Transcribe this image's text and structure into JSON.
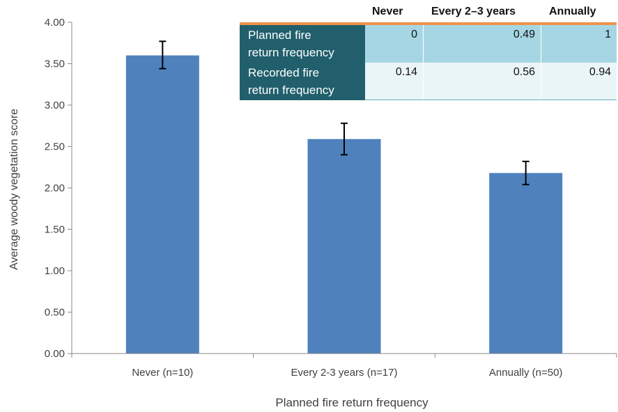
{
  "chart_data": {
    "type": "bar",
    "categories": [
      "Never (n=10)",
      "Every 2-3 years (n=17)",
      "Annually (n=50)"
    ],
    "values": [
      3.6,
      2.59,
      2.18
    ],
    "error_low": [
      3.44,
      2.4,
      2.04
    ],
    "error_high": [
      3.77,
      2.78,
      2.32
    ],
    "xlabel": "Planned fire return frequency",
    "ylabel": "Average woody vegetation score",
    "ylim": [
      0,
      4
    ],
    "yticks": [
      "0.00",
      "0.50",
      "1.00",
      "1.50",
      "2.00",
      "2.50",
      "3.00",
      "3.50",
      "4.00"
    ],
    "bar_color": "#4f81bd",
    "grid": false
  },
  "inset_table": {
    "columns": [
      "Never",
      "Every 2–3 years",
      "Annually"
    ],
    "rows": [
      {
        "label_line1": "Planned fire",
        "label_line2": "return frequency",
        "values": [
          "0",
          "0.49",
          "1"
        ]
      },
      {
        "label_line1": "Recorded fire",
        "label_line2": "return frequency",
        "values": [
          "0.14",
          "0.56",
          "0.94"
        ]
      }
    ],
    "header_accent": "#f0934a",
    "label_bg": "#215f6c"
  }
}
